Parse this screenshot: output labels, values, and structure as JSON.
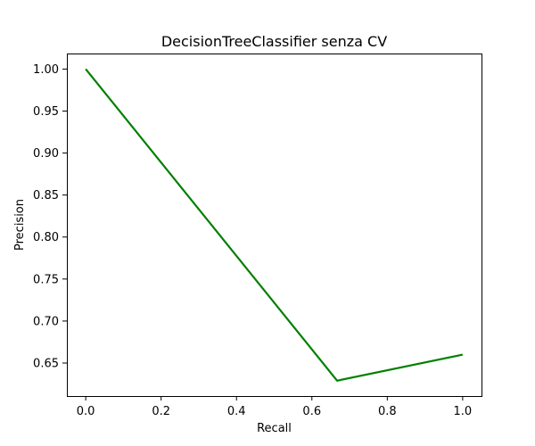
{
  "chart_data": {
    "type": "line",
    "title": "DecisionTreeClassifier senza CV",
    "xlabel": "Recall",
    "ylabel": "Precision",
    "xlim": [
      -0.05,
      1.05
    ],
    "ylim": [
      0.6107,
      1.0185
    ],
    "x_ticks": [
      0.0,
      0.2,
      0.4,
      0.6,
      0.8,
      1.0
    ],
    "x_tick_labels": [
      "0.0",
      "0.2",
      "0.4",
      "0.6",
      "0.8",
      "1.0"
    ],
    "y_ticks": [
      0.65,
      0.7,
      0.75,
      0.8,
      0.85,
      0.9,
      0.95,
      1.0
    ],
    "y_tick_labels": [
      "0.65",
      "0.70",
      "0.75",
      "0.80",
      "0.85",
      "0.90",
      "0.95",
      "1.00"
    ],
    "grid": false,
    "series": [
      {
        "color": "#008000",
        "x": [
          0.0,
          0.667,
          1.0
        ],
        "y": [
          1.0,
          0.629,
          0.66
        ]
      }
    ]
  }
}
